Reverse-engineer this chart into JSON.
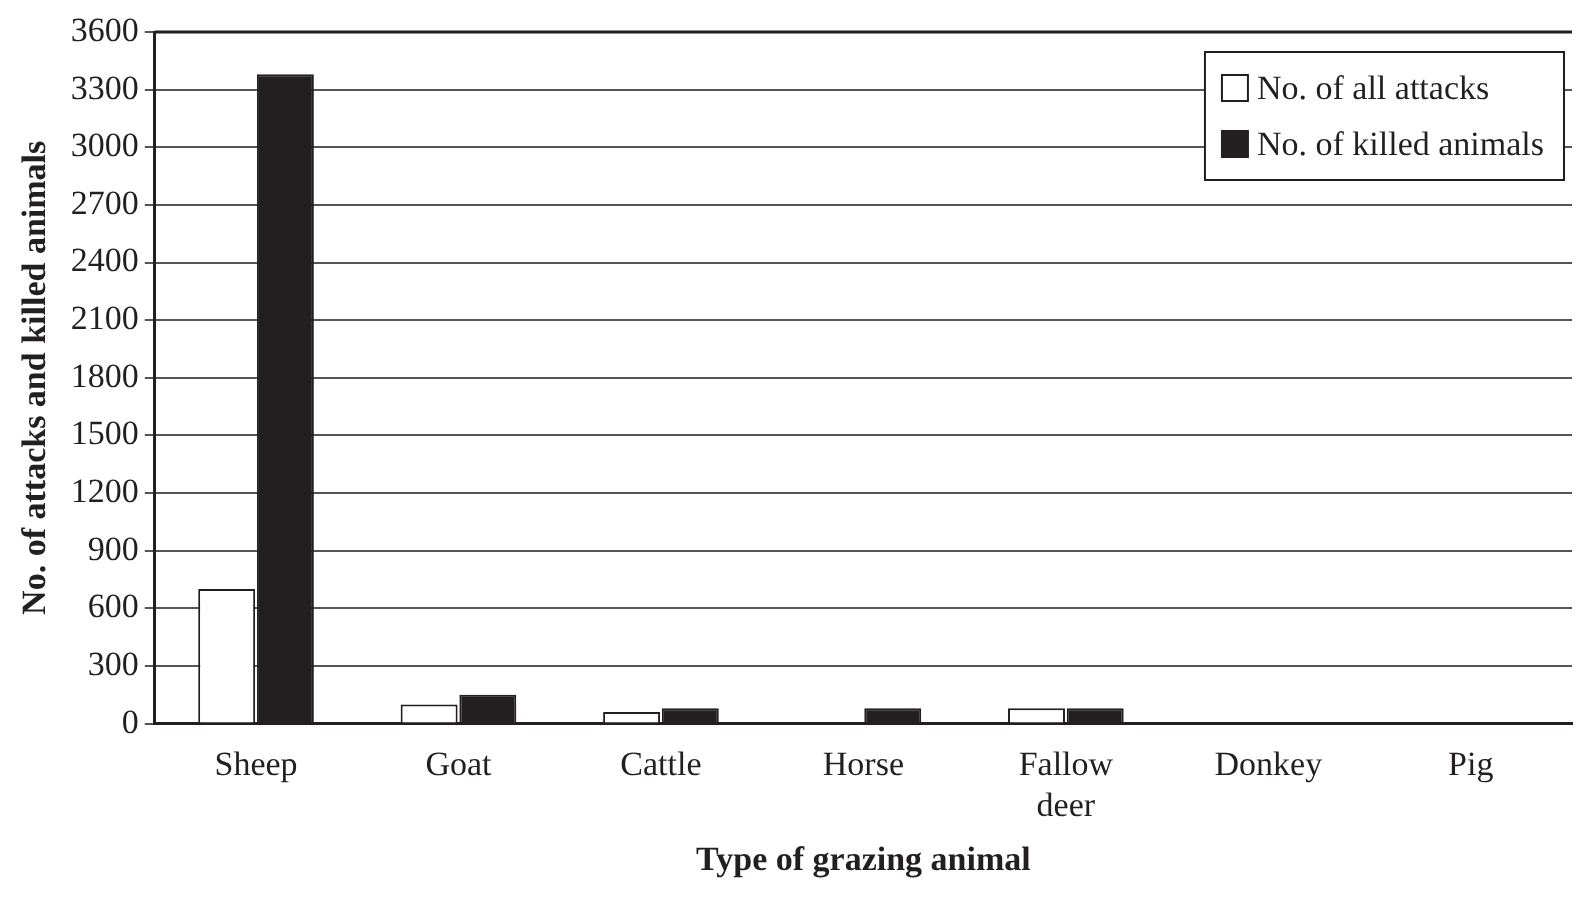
{
  "chart_data": {
    "type": "bar",
    "xlabel": "Type of grazing animal",
    "ylabel": "No. of attacks and killed animals",
    "categories": [
      "Sheep",
      "Goat",
      "Cattle",
      "Horse",
      "Fallow deer",
      "Donkey",
      "Pig"
    ],
    "series": [
      {
        "name": "No. of all attacks",
        "color": "#ffffff",
        "values": [
          700,
          100,
          60,
          0,
          80,
          0,
          0
        ]
      },
      {
        "name": "No. of killed animals",
        "color": "#231f20",
        "values": [
          3380,
          150,
          80,
          80,
          80,
          0,
          0
        ]
      }
    ],
    "ylim": [
      0,
      3600
    ],
    "yticks": [
      0,
      300,
      600,
      900,
      1200,
      1500,
      1800,
      2100,
      2400,
      2700,
      3000,
      3300,
      3600
    ],
    "grid": "y",
    "legend": "top right"
  }
}
